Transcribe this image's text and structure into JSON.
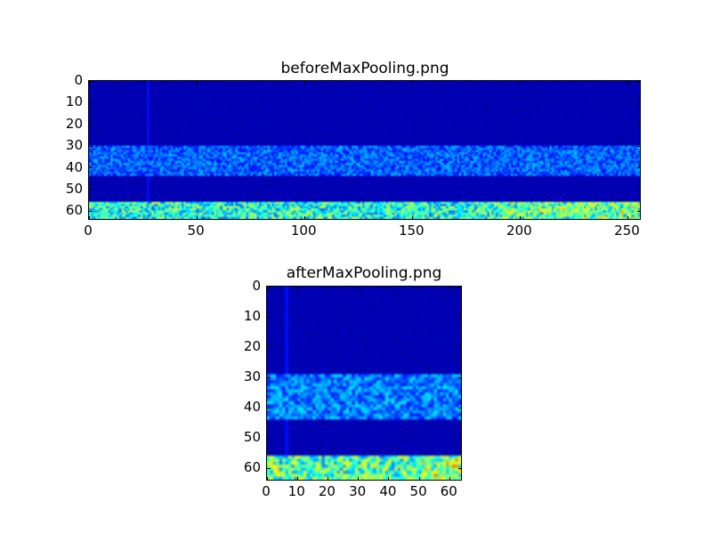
{
  "chart_data": [
    {
      "type": "heatmap",
      "title": "beforeMaxPooling.png",
      "colormap": "jet",
      "shape": [
        64,
        256
      ],
      "xlim": [
        0,
        256
      ],
      "ylim": [
        64,
        0
      ],
      "xticks": [
        0,
        50,
        100,
        150,
        200,
        250
      ],
      "yticks": [
        0,
        10,
        20,
        30,
        40,
        50,
        60
      ],
      "xlabel": "",
      "ylabel": "",
      "value_range": [
        0,
        1
      ],
      "bands": [
        {
          "rows": [
            0,
            30
          ],
          "level": 0.05
        },
        {
          "rows": [
            30,
            44
          ],
          "level": 0.22
        },
        {
          "rows": [
            44,
            56
          ],
          "level": 0.06
        },
        {
          "rows": [
            56,
            64
          ],
          "level": 0.4
        }
      ],
      "vertical_line_col": 27
    },
    {
      "type": "heatmap",
      "title": "afterMaxPooling.png",
      "colormap": "jet",
      "shape": [
        64,
        64
      ],
      "xlim": [
        0,
        64
      ],
      "ylim": [
        64,
        0
      ],
      "xticks": [
        0,
        10,
        20,
        30,
        40,
        50,
        60
      ],
      "yticks": [
        0,
        10,
        20,
        30,
        40,
        50,
        60
      ],
      "xlabel": "",
      "ylabel": "",
      "value_range": [
        0,
        1
      ],
      "bands": [
        {
          "rows": [
            0,
            29
          ],
          "level": 0.05
        },
        {
          "rows": [
            29,
            44
          ],
          "level": 0.25
        },
        {
          "rows": [
            44,
            56
          ],
          "level": 0.06
        },
        {
          "rows": [
            56,
            64
          ],
          "level": 0.45
        }
      ],
      "vertical_line_col": 6
    }
  ]
}
